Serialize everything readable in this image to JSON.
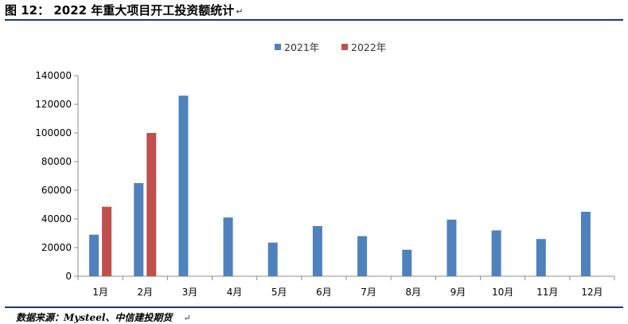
{
  "title": "图 12： 2022 年重大项目开工投资额统计",
  "title_mark": "↵",
  "source": "数据来源：Mysteel、中信建投期货",
  "source_mark": "↵",
  "chart_data": {
    "type": "bar",
    "categories": [
      "1月",
      "2月",
      "3月",
      "4月",
      "5月",
      "6月",
      "7月",
      "8月",
      "9月",
      "10月",
      "11月",
      "12月"
    ],
    "series": [
      {
        "name": "2021年",
        "color": "#4f81bd",
        "values": [
          29000,
          65000,
          126000,
          41000,
          23500,
          35000,
          28000,
          18500,
          39500,
          32000,
          26000,
          45000
        ]
      },
      {
        "name": "2022年",
        "color": "#c0504d",
        "values": [
          48500,
          100000,
          null,
          null,
          null,
          null,
          null,
          null,
          null,
          null,
          null,
          null
        ]
      }
    ],
    "ylim": [
      0,
      140000
    ],
    "yticks": [
      "0",
      "20000",
      "40000",
      "60000",
      "80000",
      "100000",
      "120000",
      "140000"
    ],
    "ytick_values": [
      0,
      20000,
      40000,
      60000,
      80000,
      100000,
      120000,
      140000
    ],
    "grid": false,
    "legend": "top-center"
  }
}
